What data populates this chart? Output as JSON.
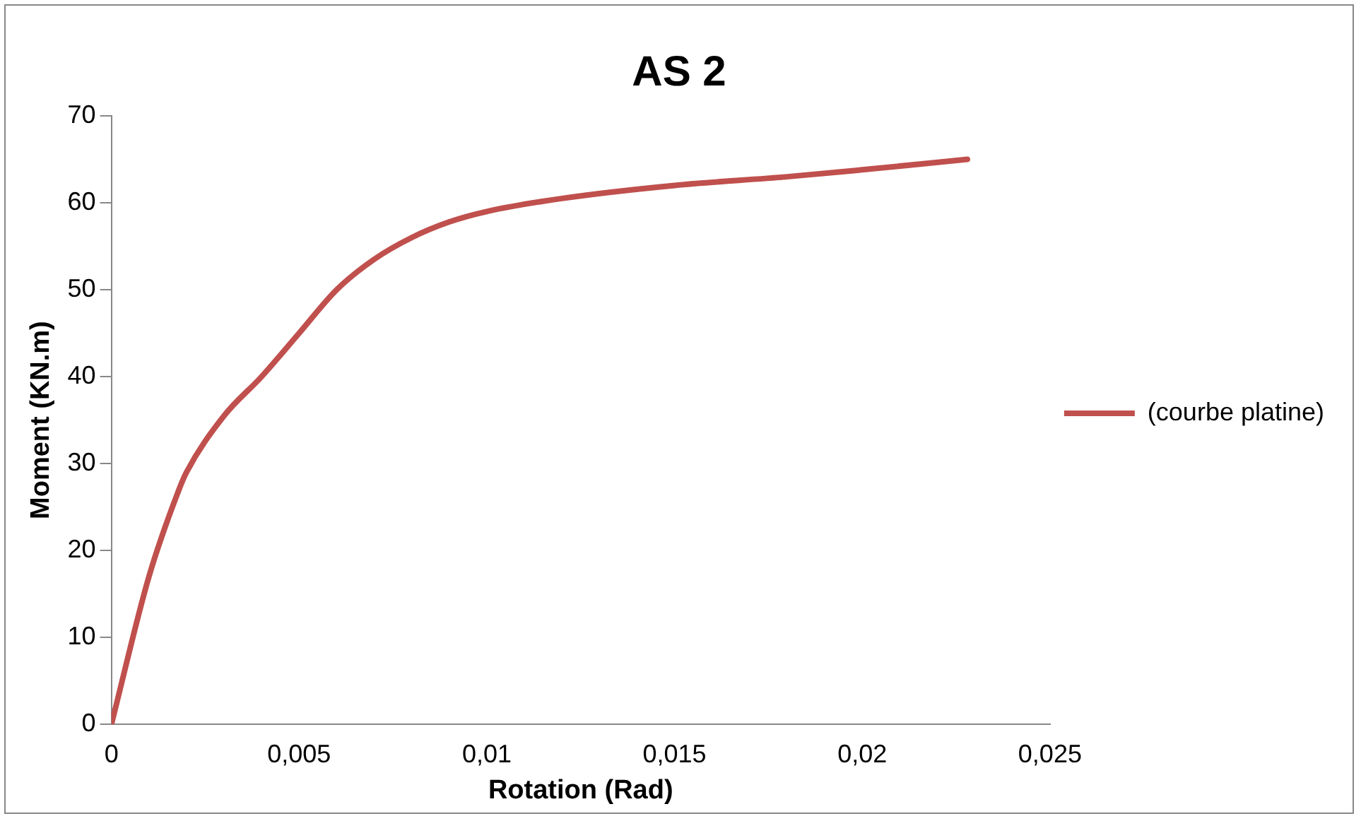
{
  "chart_data": {
    "type": "line",
    "title": "AS 2",
    "xlabel": "Rotation (Rad)",
    "ylabel": "Moment (KN.m)",
    "x": [
      0,
      0.001,
      0.0018,
      0.002,
      0.003,
      0.004,
      0.005,
      0.006,
      0.007,
      0.008,
      0.009,
      0.01,
      0.012,
      0.015,
      0.018,
      0.02,
      0.0228
    ],
    "series": [
      {
        "name": "(courbe platine)",
        "color": "#c0504d",
        "values": [
          0,
          17,
          27,
          29,
          35.5,
          40,
          45,
          50,
          53.5,
          56,
          57.8,
          59,
          60.5,
          62,
          63,
          63.8,
          65
        ]
      }
    ],
    "xlim": [
      0,
      0.025
    ],
    "xticks": [
      0,
      {
        "value": 0.005,
        "label": "0,005"
      },
      {
        "value": 0.01,
        "label": "0,01"
      },
      {
        "value": 0.015,
        "label": "0,015"
      },
      {
        "value": 0.02,
        "label": "0,02"
      },
      {
        "value": 0.025,
        "label": "0,025"
      }
    ],
    "ylim": [
      0,
      70
    ],
    "yticks": [
      0,
      10,
      20,
      30,
      40,
      50,
      60,
      70
    ],
    "grid": false,
    "legend": "right",
    "marker": "none",
    "line_style": "solid"
  }
}
